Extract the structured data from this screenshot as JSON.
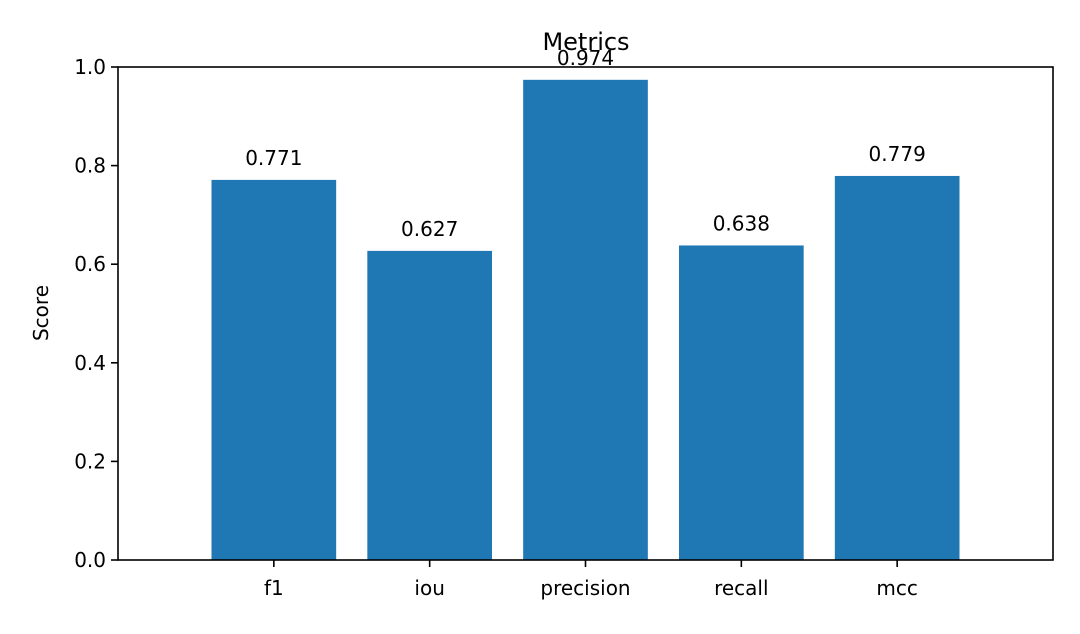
{
  "chart_data": {
    "type": "bar",
    "title": "Metrics",
    "xlabel": "",
    "ylabel": "Score",
    "categories": [
      "f1",
      "iou",
      "precision",
      "recall",
      "mcc"
    ],
    "values": [
      0.771,
      0.627,
      0.974,
      0.638,
      0.779
    ],
    "value_labels": [
      "0.771",
      "0.627",
      "0.974",
      "0.638",
      "0.779"
    ],
    "ylim": [
      0,
      1.0
    ],
    "yticks": [
      0.0,
      0.2,
      0.4,
      0.6,
      0.8,
      1.0
    ],
    "ytick_labels": [
      "0.0",
      "0.2",
      "0.4",
      "0.6",
      "0.8",
      "1.0"
    ],
    "grid": false,
    "legend": "none",
    "bar_color": "#1f77b4"
  }
}
